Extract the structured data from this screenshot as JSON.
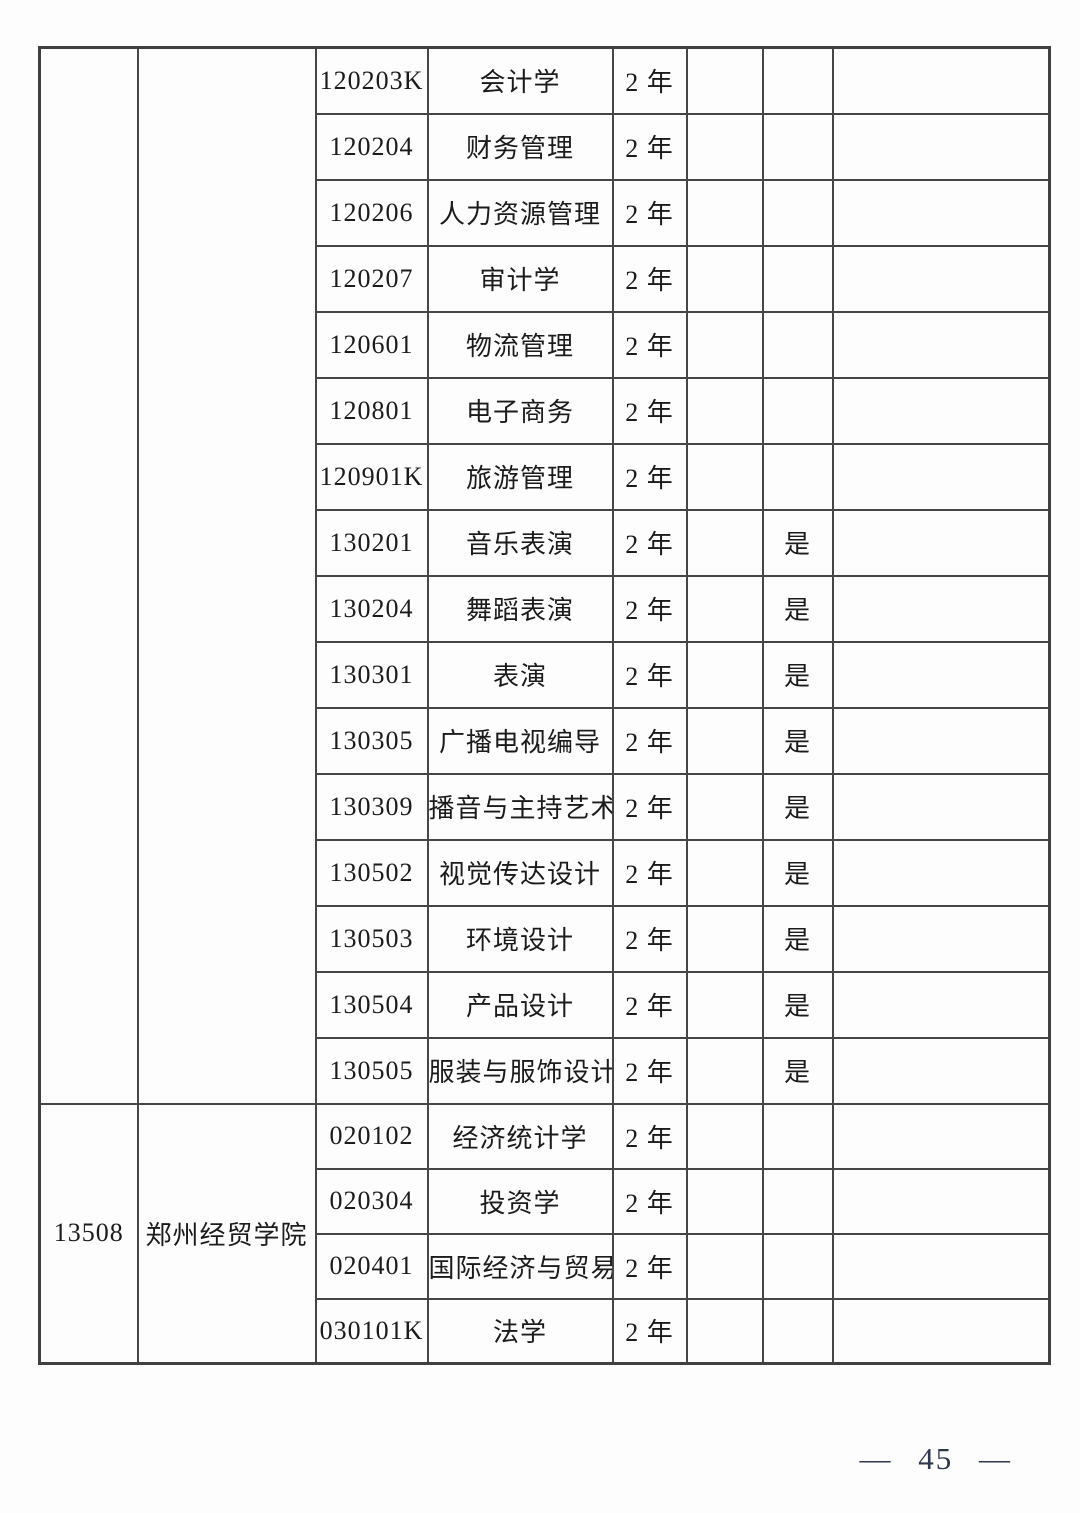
{
  "page": {
    "number_label": "— 45 —"
  },
  "colors": {
    "background": "#fdfdfd",
    "table_border": "#464646",
    "text": "#1b1b1b",
    "page_number_text": "#2e3950"
  },
  "table": {
    "sections": [
      {
        "school_code": "",
        "school_name": "",
        "rows": [
          {
            "major_code": "120203K",
            "major_name": "会计学",
            "duration": "2 年",
            "blank1": "",
            "art_flag": "",
            "remark": ""
          },
          {
            "major_code": "120204",
            "major_name": "财务管理",
            "duration": "2 年",
            "blank1": "",
            "art_flag": "",
            "remark": ""
          },
          {
            "major_code": "120206",
            "major_name": "人力资源管理",
            "duration": "2 年",
            "blank1": "",
            "art_flag": "",
            "remark": ""
          },
          {
            "major_code": "120207",
            "major_name": "审计学",
            "duration": "2 年",
            "blank1": "",
            "art_flag": "",
            "remark": ""
          },
          {
            "major_code": "120601",
            "major_name": "物流管理",
            "duration": "2 年",
            "blank1": "",
            "art_flag": "",
            "remark": ""
          },
          {
            "major_code": "120801",
            "major_name": "电子商务",
            "duration": "2 年",
            "blank1": "",
            "art_flag": "",
            "remark": ""
          },
          {
            "major_code": "120901K",
            "major_name": "旅游管理",
            "duration": "2 年",
            "blank1": "",
            "art_flag": "",
            "remark": ""
          },
          {
            "major_code": "130201",
            "major_name": "音乐表演",
            "duration": "2 年",
            "blank1": "",
            "art_flag": "是",
            "remark": ""
          },
          {
            "major_code": "130204",
            "major_name": "舞蹈表演",
            "duration": "2 年",
            "blank1": "",
            "art_flag": "是",
            "remark": ""
          },
          {
            "major_code": "130301",
            "major_name": "表演",
            "duration": "2 年",
            "blank1": "",
            "art_flag": "是",
            "remark": ""
          },
          {
            "major_code": "130305",
            "major_name": "广播电视编导",
            "duration": "2 年",
            "blank1": "",
            "art_flag": "是",
            "remark": ""
          },
          {
            "major_code": "130309",
            "major_name": "播音与主持艺术",
            "duration": "2 年",
            "blank1": "",
            "art_flag": "是",
            "remark": ""
          },
          {
            "major_code": "130502",
            "major_name": "视觉传达设计",
            "duration": "2 年",
            "blank1": "",
            "art_flag": "是",
            "remark": ""
          },
          {
            "major_code": "130503",
            "major_name": "环境设计",
            "duration": "2 年",
            "blank1": "",
            "art_flag": "是",
            "remark": ""
          },
          {
            "major_code": "130504",
            "major_name": "产品设计",
            "duration": "2 年",
            "blank1": "",
            "art_flag": "是",
            "remark": ""
          },
          {
            "major_code": "130505",
            "major_name": "服装与服饰设计",
            "duration": "2 年",
            "blank1": "",
            "art_flag": "是",
            "remark": ""
          }
        ]
      },
      {
        "school_code": "13508",
        "school_name": "郑州经贸学院",
        "rows": [
          {
            "major_code": "020102",
            "major_name": "经济统计学",
            "duration": "2 年",
            "blank1": "",
            "art_flag": "",
            "remark": ""
          },
          {
            "major_code": "020304",
            "major_name": "投资学",
            "duration": "2 年",
            "blank1": "",
            "art_flag": "",
            "remark": ""
          },
          {
            "major_code": "020401",
            "major_name": "国际经济与贸易",
            "duration": "2 年",
            "blank1": "",
            "art_flag": "",
            "remark": ""
          },
          {
            "major_code": "030101K",
            "major_name": "法学",
            "duration": "2 年",
            "blank1": "",
            "art_flag": "",
            "remark": ""
          }
        ]
      }
    ]
  }
}
